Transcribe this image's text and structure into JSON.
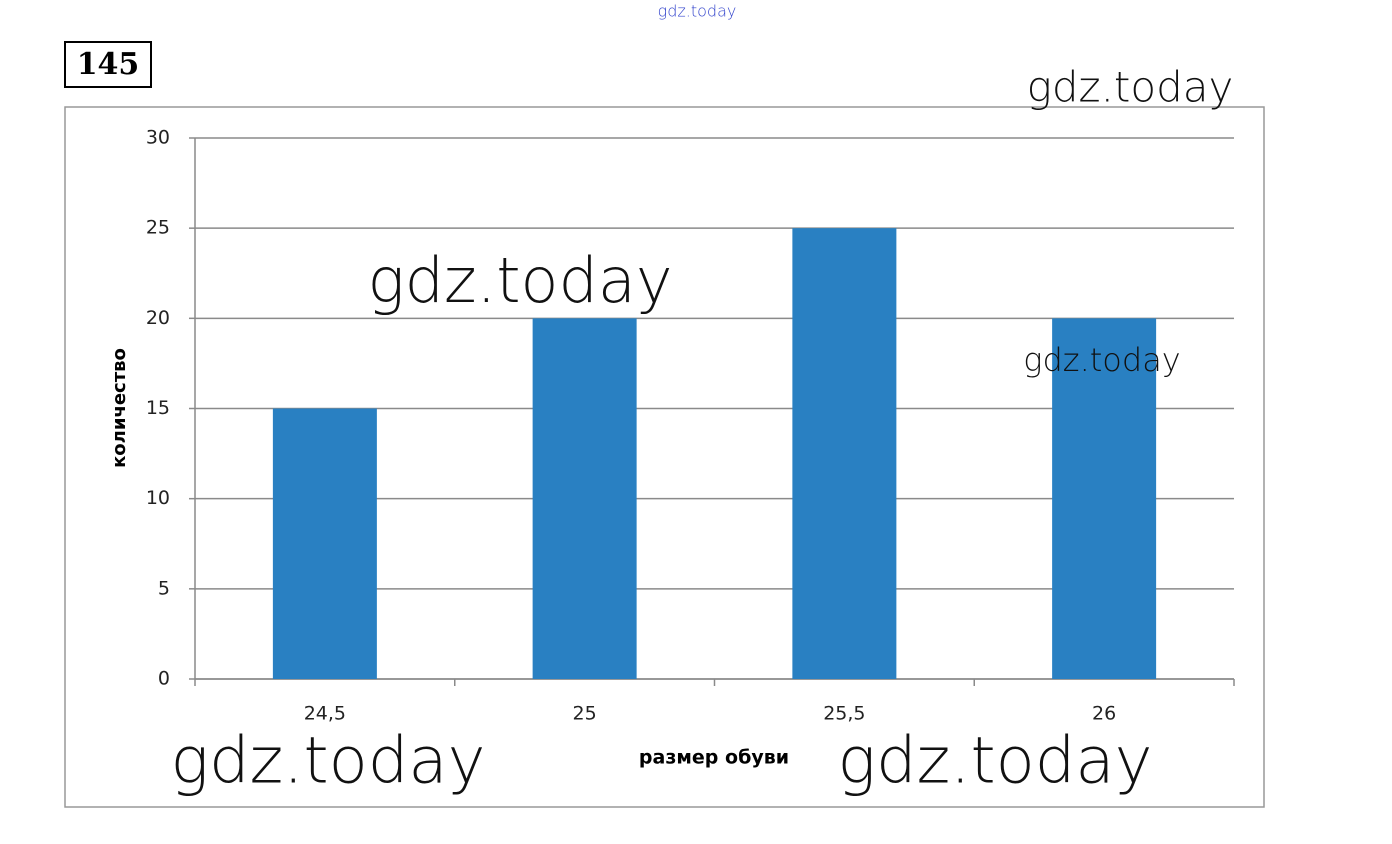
{
  "problem_number": "145",
  "watermarks": [
    "gdz.today",
    "gdz.today",
    "gdz.today",
    "gdz.today",
    "gdz.today",
    "gdz.today"
  ],
  "chart_data": {
    "type": "bar",
    "categories": [
      "24,5",
      "25",
      "25,5",
      "26"
    ],
    "values": [
      15,
      20,
      25,
      20
    ],
    "color": "#2980c2",
    "x_label": "размер обуви",
    "y_label": "количество",
    "ylim": [
      0,
      30
    ],
    "yticks": [
      0,
      5,
      10,
      15,
      20,
      25,
      30
    ],
    "grid": true
  }
}
